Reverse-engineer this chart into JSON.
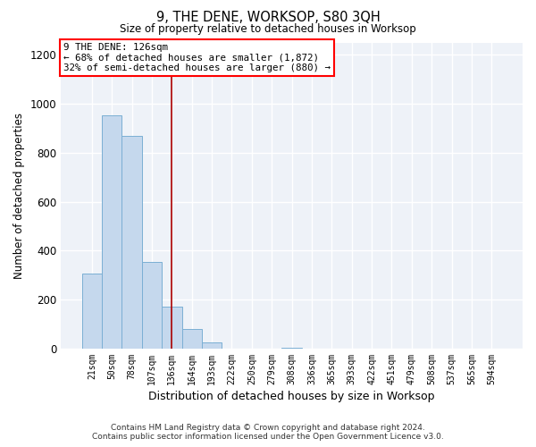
{
  "title": "9, THE DENE, WORKSOP, S80 3QH",
  "subtitle": "Size of property relative to detached houses in Worksop",
  "xlabel": "Distribution of detached houses by size in Worksop",
  "ylabel": "Number of detached properties",
  "bar_labels": [
    "21sqm",
    "50sqm",
    "78sqm",
    "107sqm",
    "136sqm",
    "164sqm",
    "193sqm",
    "222sqm",
    "250sqm",
    "279sqm",
    "308sqm",
    "336sqm",
    "365sqm",
    "393sqm",
    "422sqm",
    "451sqm",
    "479sqm",
    "508sqm",
    "537sqm",
    "565sqm",
    "594sqm"
  ],
  "bar_values": [
    307,
    951,
    869,
    355,
    170,
    80,
    25,
    0,
    0,
    0,
    5,
    0,
    0,
    0,
    0,
    0,
    0,
    0,
    0,
    0,
    0
  ],
  "bar_color": "#c5d8ed",
  "bar_edgecolor": "#7bafd4",
  "bar_linewidth": 0.7,
  "vline_x_index": 4,
  "vline_color": "#aa0000",
  "vline_linewidth": 1.2,
  "annotation_text_line1": "9 THE DENE: 126sqm",
  "annotation_text_line2": "← 68% of detached houses are smaller (1,872)",
  "annotation_text_line3": "32% of semi-detached houses are larger (880) →",
  "ylim": [
    0,
    1250
  ],
  "yticks": [
    0,
    200,
    400,
    600,
    800,
    1000,
    1200
  ],
  "background_color": "#eef2f8",
  "grid_color": "white",
  "footer_line1": "Contains HM Land Registry data © Crown copyright and database right 2024.",
  "footer_line2": "Contains public sector information licensed under the Open Government Licence v3.0."
}
